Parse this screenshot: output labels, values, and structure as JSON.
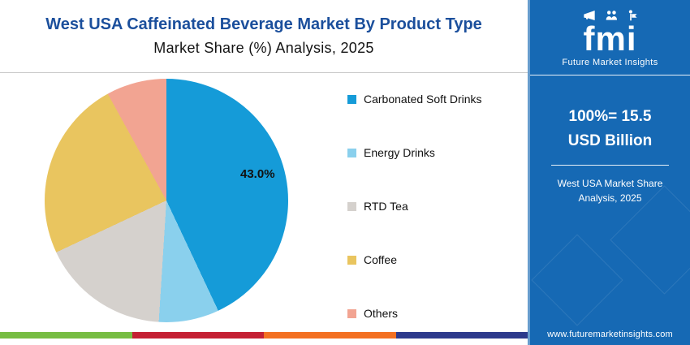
{
  "header": {
    "title": "West USA Caffeinated Beverage Market By Product Type",
    "subtitle": "Market Share (%) Analysis, 2025"
  },
  "chart_data": {
    "type": "pie",
    "title": "West USA Caffeinated Beverage Market By Product Type",
    "subtitle": "Market Share (%) Analysis, 2025",
    "legend_position": "right",
    "segments": [
      {
        "label": "Carbonated Soft Drinks",
        "value": 43.0,
        "color": "#159bd8"
      },
      {
        "label": "Energy Drinks",
        "value": 8.0,
        "color": "#8ad0ed"
      },
      {
        "label": "RTD Tea",
        "value": 17.0,
        "color": "#d5d1cd"
      },
      {
        "label": "Coffee",
        "value": 24.0,
        "color": "#e9c55f"
      },
      {
        "label": "Others",
        "value": 8.0,
        "color": "#f2a492"
      }
    ],
    "data_labels": [
      {
        "segment": "Carbonated Soft Drinks",
        "text": "43.0%"
      }
    ]
  },
  "side_panel": {
    "background": "#1669b4",
    "logo_text": "fmi",
    "logo_subtext": "Future Market Insights",
    "headline": "100%= 15.5 USD Billion",
    "subtext": "West USA Market Share Analysis, 2025",
    "website": "www.futuremarketinsights.com"
  },
  "footer_strip": {
    "colors": [
      "#77bd43",
      "#c42033",
      "#f37021",
      "#2d3a8c"
    ]
  }
}
